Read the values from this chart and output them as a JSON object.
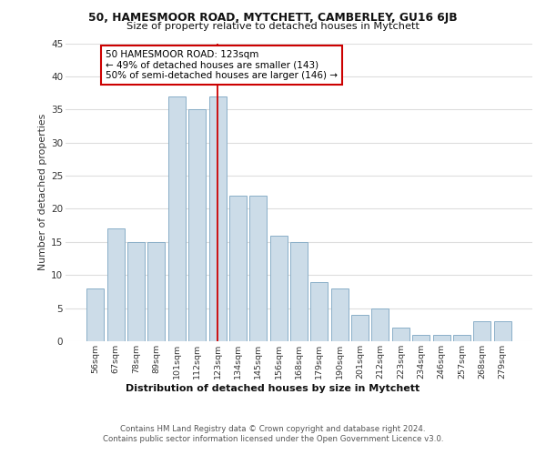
{
  "title1": "50, HAMESMOOR ROAD, MYTCHETT, CAMBERLEY, GU16 6JB",
  "title2": "Size of property relative to detached houses in Mytchett",
  "xlabel": "Distribution of detached houses by size in Mytchett",
  "ylabel": "Number of detached properties",
  "footnote": "Contains HM Land Registry data © Crown copyright and database right 2024.\nContains public sector information licensed under the Open Government Licence v3.0.",
  "categories": [
    "56sqm",
    "67sqm",
    "78sqm",
    "89sqm",
    "101sqm",
    "112sqm",
    "123sqm",
    "134sqm",
    "145sqm",
    "156sqm",
    "168sqm",
    "179sqm",
    "190sqm",
    "201sqm",
    "212sqm",
    "223sqm",
    "234sqm",
    "246sqm",
    "257sqm",
    "268sqm",
    "279sqm"
  ],
  "values": [
    8,
    17,
    15,
    15,
    37,
    35,
    37,
    22,
    22,
    16,
    15,
    9,
    8,
    4,
    5,
    2,
    1,
    1,
    1,
    3,
    3
  ],
  "bar_color": "#ccdce8",
  "bar_edge_color": "#8aafc8",
  "highlight_x": "123sqm",
  "highlight_line_color": "#cc0000",
  "annotation_text": "50 HAMESMOOR ROAD: 123sqm\n← 49% of detached houses are smaller (143)\n50% of semi-detached houses are larger (146) →",
  "annotation_box_color": "white",
  "annotation_box_edge": "#cc0000",
  "ylim": [
    0,
    45
  ],
  "yticks": [
    0,
    5,
    10,
    15,
    20,
    25,
    30,
    35,
    40,
    45
  ],
  "bg_color": "#ffffff",
  "grid_color": "#dddddd"
}
